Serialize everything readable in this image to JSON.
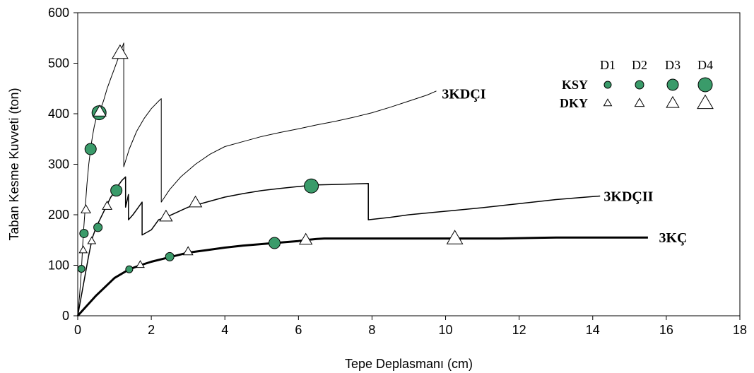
{
  "chart_data": {
    "type": "line",
    "title": "",
    "xlabel": "Tepe Deplasmanı (cm)",
    "ylabel": "Taban Kesme Kuvveti (ton)",
    "xlim": [
      0,
      18
    ],
    "ylim": [
      0,
      600
    ],
    "xticks": [
      "0",
      "2",
      "4",
      "6",
      "8",
      "10",
      "12",
      "14",
      "16",
      "18"
    ],
    "yticks": [
      "0",
      "100",
      "200",
      "300",
      "400",
      "500",
      "600"
    ],
    "grid": false,
    "series": [
      {
        "name": "3KDÇI",
        "color": "#000000",
        "points": [
          [
            0,
            0
          ],
          [
            0.05,
            40
          ],
          [
            0.1,
            90
          ],
          [
            0.15,
            160
          ],
          [
            0.2,
            210
          ],
          [
            0.25,
            260
          ],
          [
            0.3,
            300
          ],
          [
            0.35,
            330
          ],
          [
            0.4,
            355
          ],
          [
            0.45,
            375
          ],
          [
            0.5,
            390
          ],
          [
            0.6,
            405
          ],
          [
            0.7,
            425
          ],
          [
            0.8,
            450
          ],
          [
            0.9,
            470
          ],
          [
            1.0,
            490
          ],
          [
            1.1,
            510
          ],
          [
            1.2,
            530
          ],
          [
            1.25,
            540
          ],
          [
            1.25,
            295
          ],
          [
            1.4,
            330
          ],
          [
            1.6,
            365
          ],
          [
            1.8,
            390
          ],
          [
            2.0,
            410
          ],
          [
            2.2,
            425
          ],
          [
            2.27,
            430
          ],
          [
            2.27,
            225
          ],
          [
            2.5,
            250
          ],
          [
            2.8,
            275
          ],
          [
            3.2,
            300
          ],
          [
            3.6,
            320
          ],
          [
            4.0,
            335
          ],
          [
            4.5,
            345
          ],
          [
            5.0,
            355
          ],
          [
            5.5,
            363
          ],
          [
            6.0,
            370
          ],
          [
            6.5,
            378
          ],
          [
            7.0,
            385
          ],
          [
            7.5,
            393
          ],
          [
            8.0,
            402
          ],
          [
            8.5,
            413
          ],
          [
            9.0,
            425
          ],
          [
            9.5,
            437
          ],
          [
            9.75,
            445
          ]
        ]
      },
      {
        "name": "3KDÇII",
        "color": "#000000",
        "points": [
          [
            0,
            0
          ],
          [
            0.1,
            40
          ],
          [
            0.2,
            80
          ],
          [
            0.3,
            120
          ],
          [
            0.4,
            155
          ],
          [
            0.5,
            175
          ],
          [
            0.6,
            190
          ],
          [
            0.7,
            205
          ],
          [
            0.8,
            220
          ],
          [
            0.9,
            235
          ],
          [
            1.0,
            245
          ],
          [
            1.1,
            258
          ],
          [
            1.2,
            268
          ],
          [
            1.3,
            275
          ],
          [
            1.3,
            215
          ],
          [
            1.38,
            240
          ],
          [
            1.38,
            190
          ],
          [
            1.5,
            200
          ],
          [
            1.6,
            210
          ],
          [
            1.75,
            225
          ],
          [
            1.75,
            160
          ],
          [
            2.0,
            170
          ],
          [
            2.1,
            180
          ],
          [
            2.2,
            190
          ],
          [
            2.4,
            195
          ],
          [
            2.7,
            205
          ],
          [
            3.0,
            215
          ],
          [
            3.5,
            225
          ],
          [
            4.0,
            235
          ],
          [
            4.5,
            242
          ],
          [
            5.0,
            248
          ],
          [
            5.5,
            252
          ],
          [
            6.0,
            256
          ],
          [
            6.5,
            259
          ],
          [
            7.0,
            260
          ],
          [
            7.9,
            262
          ],
          [
            7.9,
            190
          ],
          [
            8.5,
            195
          ],
          [
            9.0,
            200
          ],
          [
            10.0,
            207
          ],
          [
            11.0,
            214
          ],
          [
            12.0,
            222
          ],
          [
            13.0,
            230
          ],
          [
            14.0,
            236
          ],
          [
            14.2,
            237
          ]
        ]
      },
      {
        "name": "3KÇ",
        "color": "#000000",
        "points": [
          [
            0,
            0
          ],
          [
            0.5,
            40
          ],
          [
            1.0,
            75
          ],
          [
            1.4,
            92
          ],
          [
            1.7,
            100
          ],
          [
            2.0,
            107
          ],
          [
            2.5,
            116
          ],
          [
            3.0,
            125
          ],
          [
            3.5,
            130
          ],
          [
            4.0,
            135
          ],
          [
            4.5,
            139
          ],
          [
            5.0,
            142
          ],
          [
            5.35,
            144
          ],
          [
            6.0,
            148
          ],
          [
            6.2,
            150
          ],
          [
            6.5,
            152
          ],
          [
            6.7,
            153
          ],
          [
            8.0,
            153
          ],
          [
            9.0,
            153
          ],
          [
            10.0,
            153
          ],
          [
            11.5,
            153
          ],
          [
            13.0,
            155
          ],
          [
            14.0,
            155
          ],
          [
            15.0,
            155
          ],
          [
            15.5,
            155
          ]
        ]
      }
    ],
    "markers": [
      {
        "series": "3KDÇI",
        "type": "circle",
        "level": "D2",
        "x": 0.17,
        "y": 163
      },
      {
        "series": "3KDÇI",
        "type": "circle",
        "level": "D3",
        "x": 0.35,
        "y": 330
      },
      {
        "series": "3KDÇI",
        "type": "circle",
        "level": "D4",
        "x": 0.58,
        "y": 402
      },
      {
        "series": "3KDÇI",
        "type": "triangle",
        "level": "D2",
        "x": 0.22,
        "y": 210
      },
      {
        "series": "3KDÇI",
        "type": "triangle",
        "level": "D3",
        "x": 0.6,
        "y": 404
      },
      {
        "series": "3KDÇI",
        "type": "triangle",
        "level": "D4",
        "x": 1.15,
        "y": 520
      },
      {
        "series": "3KDÇII",
        "type": "circle",
        "level": "D1",
        "x": 0.1,
        "y": 93
      },
      {
        "series": "3KDÇII",
        "type": "circle",
        "level": "D2",
        "x": 0.55,
        "y": 175
      },
      {
        "series": "3KDÇII",
        "type": "circle",
        "level": "D3",
        "x": 1.05,
        "y": 248
      },
      {
        "series": "3KDÇII",
        "type": "circle",
        "level": "D4",
        "x": 6.35,
        "y": 257
      },
      {
        "series": "3KDÇII",
        "type": "triangle",
        "level": "D1",
        "x": 0.15,
        "y": 130
      },
      {
        "series": "3KDÇII",
        "type": "triangle",
        "level": "D1",
        "x": 0.38,
        "y": 148
      },
      {
        "series": "3KDÇII",
        "type": "triangle",
        "level": "D2",
        "x": 0.8,
        "y": 217
      },
      {
        "series": "3KDÇII",
        "type": "triangle",
        "level": "D3",
        "x": 2.4,
        "y": 196
      },
      {
        "series": "3KDÇII",
        "type": "triangle",
        "level": "D3",
        "x": 3.2,
        "y": 224
      },
      {
        "series": "3KÇ",
        "type": "circle",
        "level": "D1",
        "x": 1.4,
        "y": 92
      },
      {
        "series": "3KÇ",
        "type": "circle",
        "level": "D2",
        "x": 2.5,
        "y": 117
      },
      {
        "series": "3KÇ",
        "type": "circle",
        "level": "D3",
        "x": 5.35,
        "y": 144
      },
      {
        "series": "3KÇ",
        "type": "triangle",
        "level": "D1",
        "x": 1.7,
        "y": 101
      },
      {
        "series": "3KÇ",
        "type": "triangle",
        "level": "D2",
        "x": 3.0,
        "y": 127
      },
      {
        "series": "3KÇ",
        "type": "triangle",
        "level": "D3",
        "x": 6.2,
        "y": 150
      },
      {
        "series": "3KÇ",
        "type": "triangle",
        "level": "D4",
        "x": 10.25,
        "y": 153
      }
    ],
    "series_labels": [
      {
        "text": "3KDÇI",
        "x": 9.9,
        "y": 440
      },
      {
        "text": "3KDÇII",
        "x": 14.3,
        "y": 237
      },
      {
        "text": "3KÇ",
        "x": 15.8,
        "y": 155
      }
    ],
    "legend": {
      "placement": "top-right",
      "columns": [
        "D1",
        "D2",
        "D3",
        "D4"
      ],
      "rows": [
        {
          "label": "KSY",
          "marker": "circle"
        },
        {
          "label": "DKY",
          "marker": "triangle"
        }
      ]
    },
    "colors": {
      "marker_fill": "#3a9b6a",
      "marker_stroke": "#000000",
      "triangle_fill": "#ffffff"
    }
  }
}
